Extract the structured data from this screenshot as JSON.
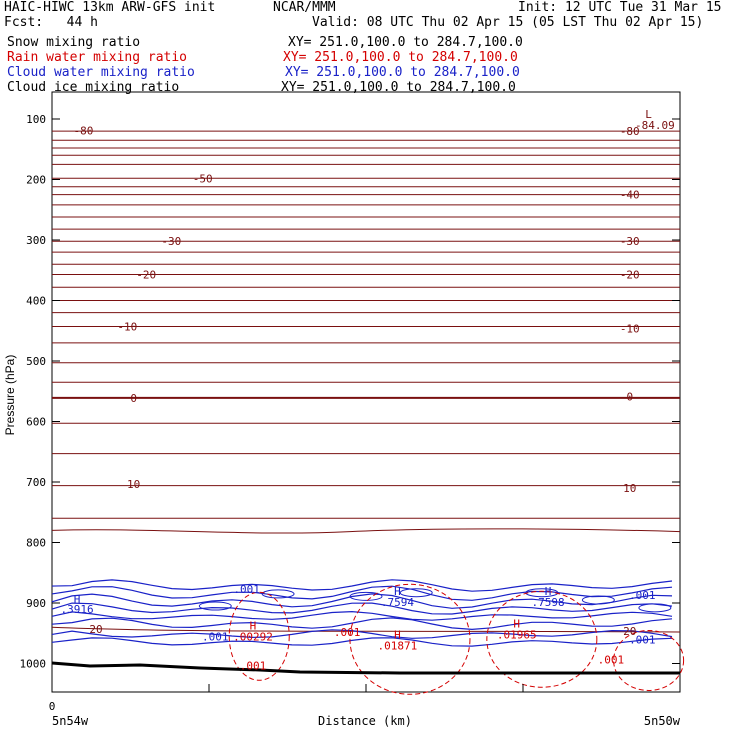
{
  "header": {
    "model": "HAIC-HIWC 13km ARW-GFS init",
    "center": "NCAR/MMM",
    "init": "Init: 12 UTC Tue 31 Mar 15",
    "fcst": "Fcst:   44 h",
    "valid": "Valid: 08 UTC Thu 02 Apr 15 (05 LST Thu 02 Apr 15)"
  },
  "fields": [
    {
      "name": "Snow mixing ratio",
      "xy": "XY= 251.0,100.0 to 284.7,100.0",
      "color": "#000000"
    },
    {
      "name": "Rain water mixing ratio",
      "xy": "XY= 251.0,100.0 to 284.7,100.0",
      "color": "#d40000"
    },
    {
      "name": "Cloud water mixing ratio",
      "xy": "XY= 251.0,100.0 to 284.7,100.0",
      "color": "#1a22c8"
    },
    {
      "name": "Cloud ice mixing ratio",
      "xy": "XY= 251.0,100.0 to 284.7,100.0",
      "color": "#000000"
    }
  ],
  "chart_data": {
    "type": "cross-section contour",
    "ylabel": "Pressure (hPa)",
    "xlabel": "Distance (km)",
    "x_start_tick": "0",
    "x_left_label": "5n54w",
    "x_right_label": "5n50w",
    "y_ticks": [
      100,
      200,
      300,
      400,
      500,
      600,
      700,
      800,
      900,
      1000
    ],
    "ylim": [
      1050,
      80
    ],
    "temperature_isotherm_labels": [
      {
        "text": "-80",
        "p": 119,
        "x": 0.05
      },
      {
        "text": "-80",
        "p": 120,
        "x": 0.92
      },
      {
        "text": "-50",
        "p": 198,
        "x": 0.24
      },
      {
        "text": "-40",
        "p": 225,
        "x": 0.92
      },
      {
        "text": "-30",
        "p": 302,
        "x": 0.19
      },
      {
        "text": "-30",
        "p": 302,
        "x": 0.92
      },
      {
        "text": "-20",
        "p": 357,
        "x": 0.15
      },
      {
        "text": "-20",
        "p": 357,
        "x": 0.92
      },
      {
        "text": "-10",
        "p": 443,
        "x": 0.12
      },
      {
        "text": "-10",
        "p": 446,
        "x": 0.92
      },
      {
        "text": "0",
        "p": 561,
        "x": 0.13
      },
      {
        "text": "0",
        "p": 559,
        "x": 0.92
      },
      {
        "text": "10",
        "p": 703,
        "x": 0.13
      },
      {
        "text": "10",
        "p": 710,
        "x": 0.92
      },
      {
        "text": "20",
        "p": 943,
        "x": 0.07
      },
      {
        "text": "20",
        "p": 946,
        "x": 0.92
      }
    ],
    "minimum_label": {
      "text": "L",
      "value": "-84.09",
      "p": 92,
      "x": 0.95
    },
    "cloud_water_labels": [
      {
        "text": ".001",
        "p": 877,
        "x": 0.31
      },
      {
        "text": "H",
        "p": 893,
        "x": 0.04
      },
      {
        "text": ".3916",
        "p": 910,
        "x": 0.04
      },
      {
        "text": "H",
        "p": 880,
        "x": 0.55
      },
      {
        "text": ".7594",
        "p": 898,
        "x": 0.55
      },
      {
        "text": "H",
        "p": 880,
        "x": 0.79
      },
      {
        "text": ".7598",
        "p": 898,
        "x": 0.79
      },
      {
        "text": ".001",
        "p": 887,
        "x": 0.94
      },
      {
        "text": ".001",
        "p": 955,
        "x": 0.26
      },
      {
        "text": ".001",
        "p": 960,
        "x": 0.94
      }
    ],
    "rain_water_labels": [
      {
        "text": "H",
        "p": 937,
        "x": 0.32
      },
      {
        "text": ".00292",
        "p": 955,
        "x": 0.32
      },
      {
        "text": ".001",
        "p": 1003,
        "x": 0.32
      },
      {
        "text": ".001",
        "p": 948,
        "x": 0.47
      },
      {
        "text": "H",
        "p": 952,
        "x": 0.55
      },
      {
        "text": ".01871",
        "p": 970,
        "x": 0.55
      },
      {
        "text": "H",
        "p": 934,
        "x": 0.74
      },
      {
        "text": ".01965",
        "p": 952,
        "x": 0.74
      },
      {
        "text": ".001",
        "p": 993,
        "x": 0.89
      }
    ]
  }
}
